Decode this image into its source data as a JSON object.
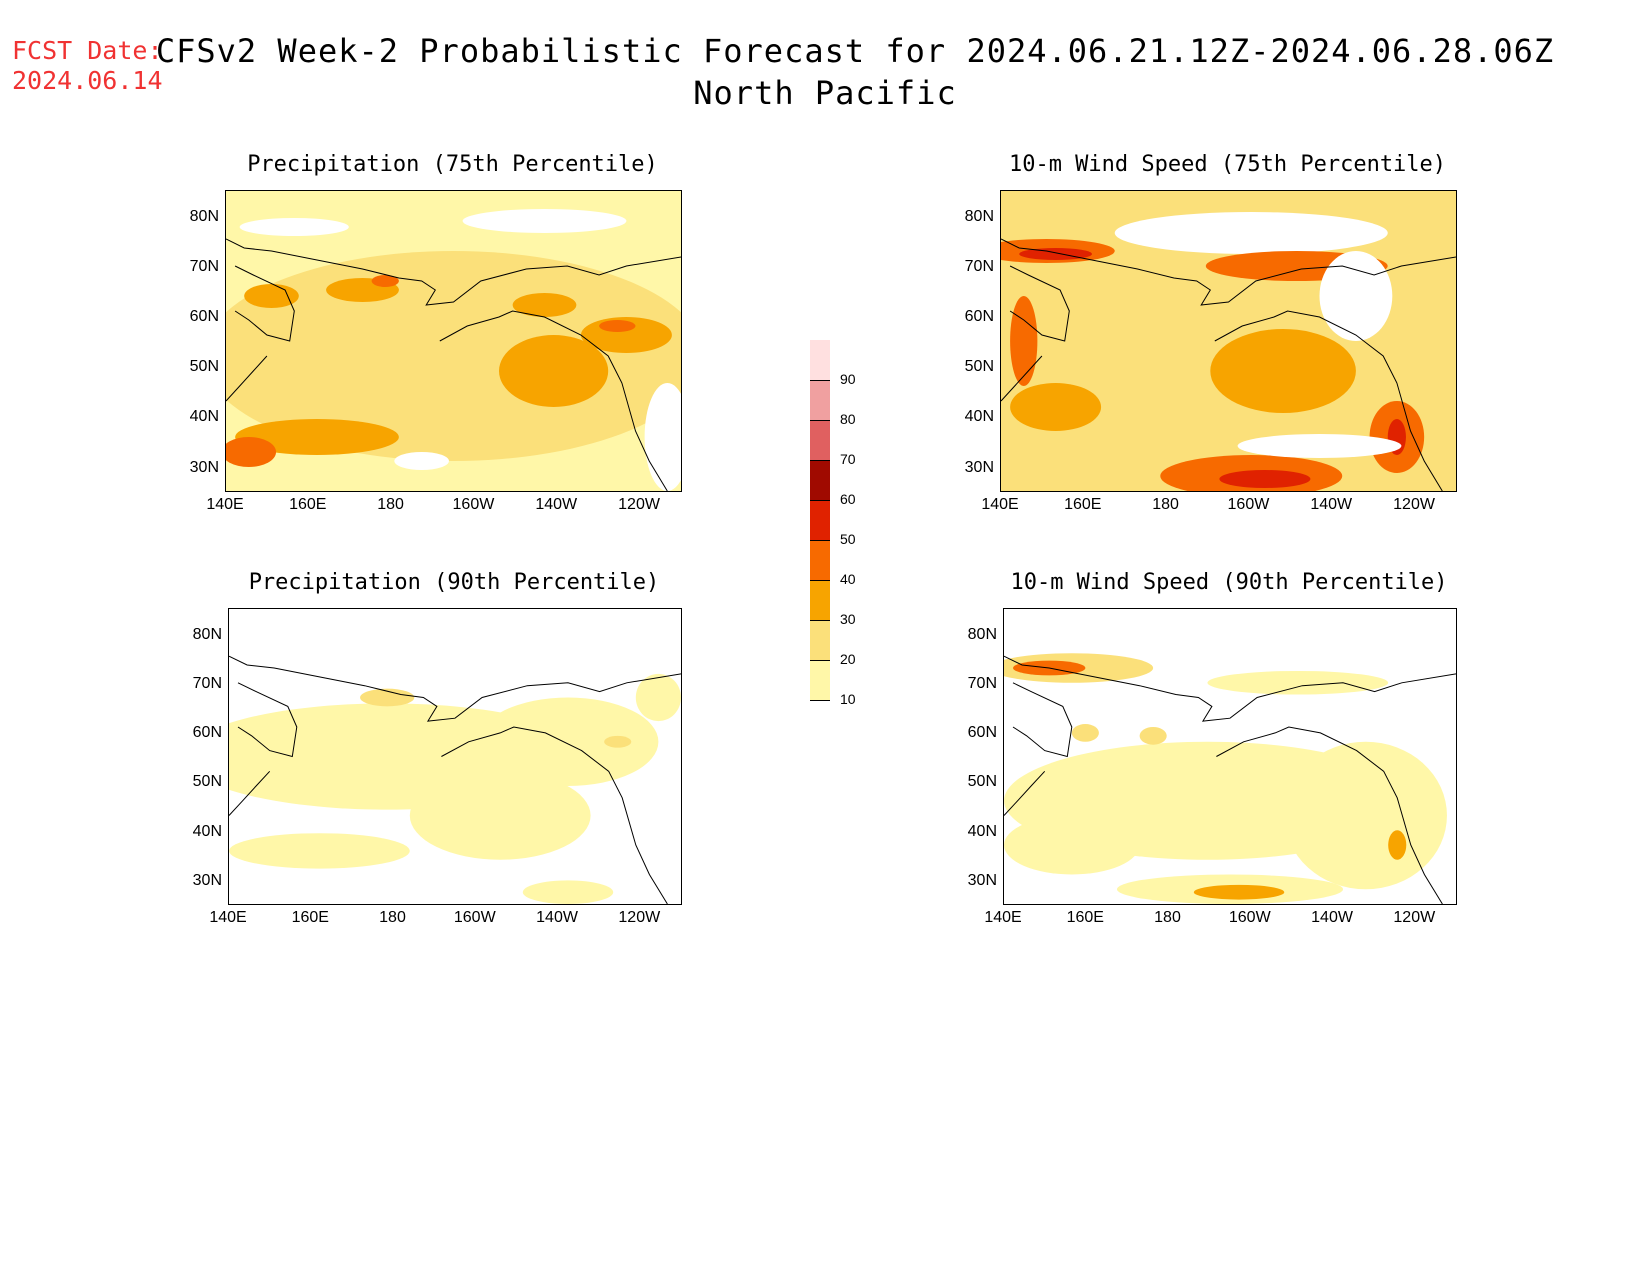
{
  "fcst": {
    "label": "FCST Date:",
    "date": "2024.06.14"
  },
  "title": {
    "line1": "CFSv2 Week-2 Probabilistic Forecast for 2024.06.21.12Z-2024.06.28.06Z",
    "line2": "North Pacific"
  },
  "panels": [
    {
      "title": "Precipitation (75th Percentile)"
    },
    {
      "title": "10-m Wind Speed (75th Percentile)"
    },
    {
      "title": "Precipitation (90th Percentile)"
    },
    {
      "title": "10-m Wind Speed (90th Percentile)"
    }
  ],
  "lat_ticks": [
    "80N",
    "70N",
    "60N",
    "50N",
    "40N",
    "30N"
  ],
  "lon_ticks": [
    "140E",
    "160E",
    "180",
    "160W",
    "140W",
    "120W"
  ],
  "colorbar": {
    "levels": [
      "10",
      "20",
      "30",
      "40",
      "50",
      "60",
      "70",
      "80",
      "90"
    ],
    "colors": [
      "#fff7a8",
      "#fbe07a",
      "#f7a400",
      "#f76a00",
      "#e02200",
      "#a00a00",
      "#e06060",
      "#f0a0a0",
      "#ffe0e0"
    ]
  }
}
